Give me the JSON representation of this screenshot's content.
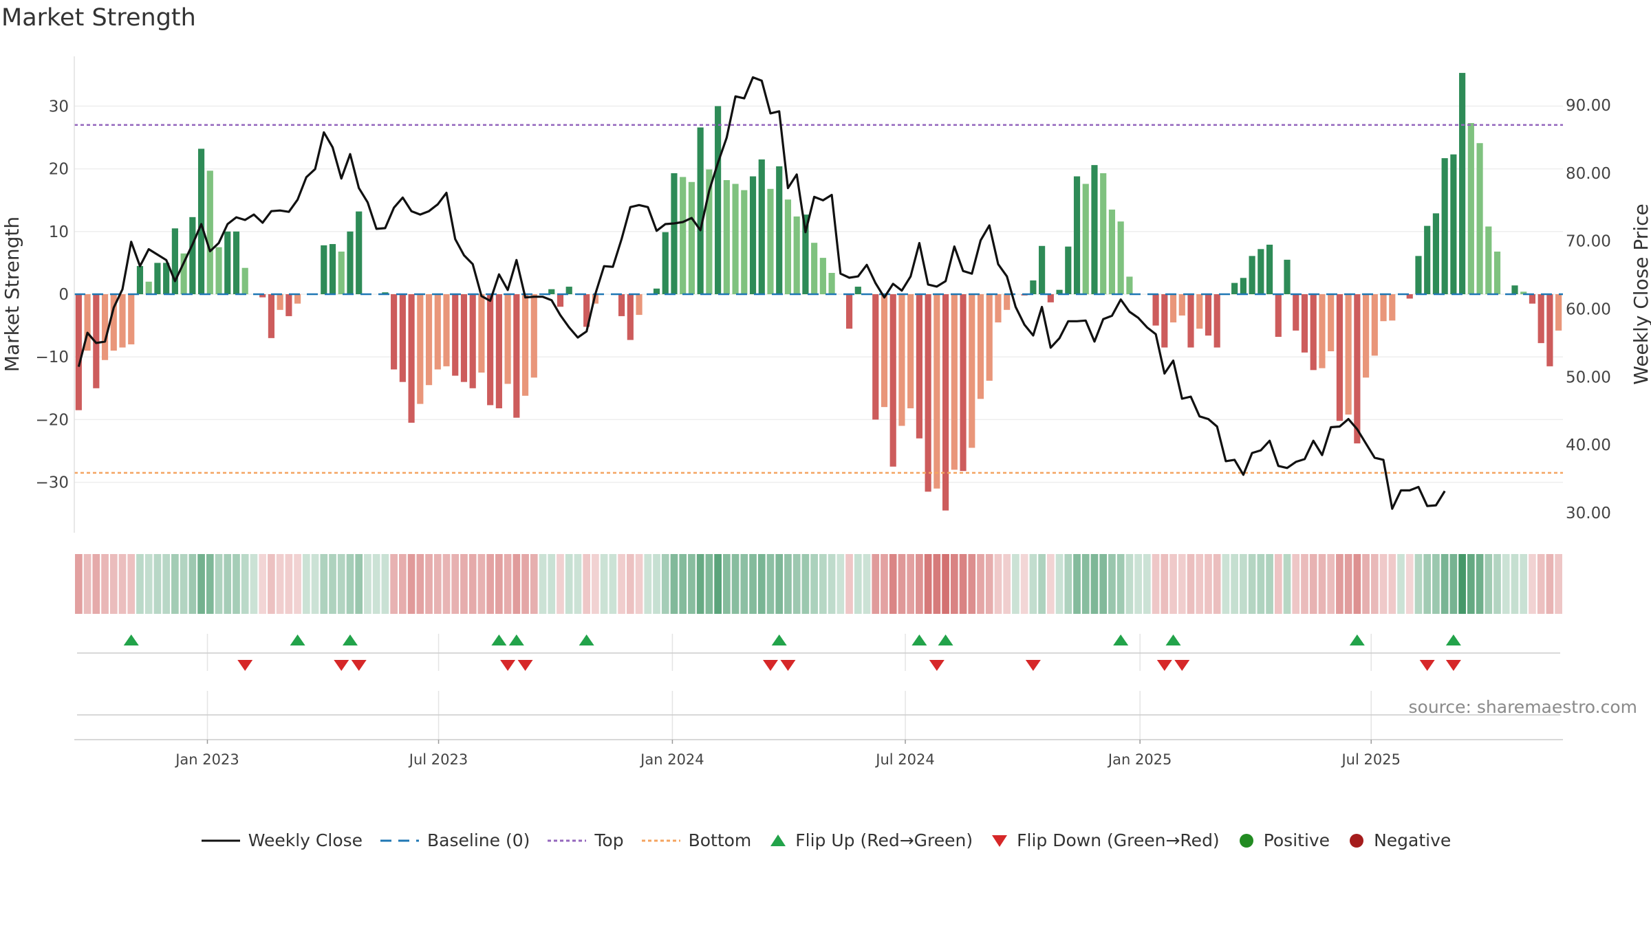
{
  "title": "Market Strength",
  "source_note": "source: sharemaestro.com",
  "colors": {
    "strong_green": "#2e8b57",
    "light_green": "#7fc27f",
    "strong_red": "#cd5c5c",
    "light_red": "#e9967a",
    "line": "#111111",
    "baseline": "#1f77b4",
    "top": "#9467bd",
    "bottom": "#f4a460",
    "flip_up": "#22a34a",
    "flip_down": "#d62728",
    "positive": "#228b22",
    "negative": "#a51c1c"
  },
  "legend": [
    {
      "key": "line",
      "label": "Weekly Close"
    },
    {
      "key": "baseline",
      "label": "Baseline (0)"
    },
    {
      "key": "top",
      "label": "Top"
    },
    {
      "key": "bottom",
      "label": "Bottom"
    },
    {
      "key": "flip_up",
      "label": "Flip Up (Red→Green)"
    },
    {
      "key": "flip_down",
      "label": "Flip Down (Green→Red)"
    },
    {
      "key": "positive",
      "label": "Positive"
    },
    {
      "key": "negative",
      "label": "Negative"
    }
  ],
  "chart_data": {
    "type": "bar",
    "ylabel_left": "Market Strength",
    "ylabel_right": "Weekly Close Price",
    "y_left_range": [
      -38,
      38
    ],
    "y_left_ticks": [
      30,
      20,
      10,
      0,
      -10,
      -20,
      -30
    ],
    "y_left_tick_labels": [
      "30",
      "20",
      "10",
      "0",
      "−10",
      "−20",
      "−30"
    ],
    "y_right_range": [
      27.5,
      97.5
    ],
    "y_right_ticks": [
      "90.00",
      "80.00",
      "70.00",
      "60.00",
      "50.00",
      "40.00",
      "30.00"
    ],
    "top_level": 27,
    "bottom_level": -28.5,
    "baseline_level": 0,
    "x_date_labels": [
      "Jan 2023",
      "Jul 2023",
      "Jan 2024",
      "Jul 2024",
      "Jan 2025",
      "Jul 2025"
    ],
    "x_date_label_weeks": [
      14.7,
      41.1,
      67.8,
      94.4,
      121.2,
      147.6
    ],
    "strength": [
      -18.5,
      -9,
      -15,
      -10.5,
      -9,
      -8.5,
      -8,
      4.5,
      2,
      5,
      5,
      10.5,
      6.5,
      12.3,
      23.2,
      19.7,
      7.5,
      10,
      10,
      4.2,
      0,
      -0.5,
      -7,
      -2.5,
      -3.5,
      -1.5,
      0,
      0,
      7.8,
      8,
      6.8,
      10,
      13.2,
      0,
      0,
      0.3,
      -12,
      -14,
      -20.5,
      -17.5,
      -14.5,
      -12,
      -11.5,
      -13,
      -14,
      -15,
      -12.5,
      -17.7,
      -18.2,
      -14.3,
      -19.7,
      -16.2,
      -13.3,
      0,
      0.8,
      -2,
      1.2,
      0,
      -5.2,
      -1.5,
      0,
      0,
      -3.5,
      -7.3,
      -3.3,
      0,
      0.9,
      9.9,
      19.3,
      18.7,
      17.9,
      26.6,
      19.9,
      30,
      18.2,
      17.6,
      16.6,
      18.8,
      21.5,
      16.8,
      20.4,
      15.1,
      12.4,
      12.7,
      8.2,
      5.8,
      3.4,
      0,
      -5.5,
      1.2,
      0,
      -20,
      -18,
      -27.5,
      -21,
      -18.2,
      -23,
      -31.5,
      -31,
      -34.5,
      -28,
      -28.2,
      -24.5,
      -16.7,
      -13.8,
      -4.5,
      -2.5,
      0,
      -0.2,
      2.2,
      7.7,
      -1.3,
      0.7,
      7.6,
      18.8,
      17.6,
      20.6,
      19.3,
      13.5,
      11.6,
      2.8,
      0,
      0,
      -5,
      -8.5,
      -4.5,
      -3.4,
      -8.5,
      -5.5,
      -6.6,
      -8.5,
      0,
      1.8,
      2.6,
      6.1,
      7.2,
      7.9,
      -6.8,
      5.5,
      -5.8,
      -9.3,
      -12.1,
      -11.8,
      -9.1,
      -20.2,
      -19.2,
      -23.8,
      -13.3,
      -9.8,
      -4.3,
      -4.2,
      0,
      -0.7,
      6.1,
      10.9,
      12.9,
      21.7,
      22.3,
      35.3,
      27.3,
      24.1,
      10.8,
      6.8,
      0,
      1.4,
      0.4,
      -1.5,
      -7.8,
      -11.5,
      -5.8
    ],
    "weekly_close": [
      51.5,
      56.5,
      55,
      55.2,
      60.2,
      62.9,
      69.9,
      66.3,
      68.8,
      68,
      67.2,
      64.1,
      66.8,
      69.5,
      72.5,
      68.5,
      69.7,
      72.5,
      73.5,
      73.1,
      73.9,
      72.7,
      74.4,
      74.5,
      74.3,
      76.1,
      79.4,
      80.6,
      86,
      83.8,
      79.2,
      82.8,
      77.8,
      75.7,
      71.8,
      71.9,
      74.9,
      76.4,
      74.4,
      73.9,
      74.4,
      75.4,
      77.1,
      70.3,
      67.9,
      66.6,
      61.9,
      61.2,
      65.1,
      62.8,
      67.2,
      61.7,
      61.8,
      61.8,
      61.3,
      59.1,
      57.3,
      55.8,
      56.7,
      62.2,
      66.3,
      66.2,
      70.3,
      75,
      75.3,
      75,
      71.5,
      72.5,
      72.6,
      72.8,
      73.4,
      71.6,
      77.4,
      81.5,
      85.2,
      91.3,
      91,
      94.1,
      93.6,
      88.8,
      89.1,
      77.8,
      79.8,
      71.3,
      76.5,
      76,
      76.8,
      65.2,
      64.6,
      64.8,
      66.5,
      63.8,
      61.7,
      63.7,
      62.7,
      64.8,
      69.7,
      63.6,
      63.3,
      64.1,
      69.2,
      65.6,
      65.2,
      70.1,
      72.3,
      66.6,
      64.8,
      60.3,
      57.7,
      56.1,
      60.3,
      54.3,
      55.7,
      58.2,
      58.2,
      58.3,
      55.2,
      58.5,
      59,
      61.4,
      59.6,
      58.7,
      57.3,
      56.3,
      50.5,
      52.4,
      46.8,
      47.1,
      44.2,
      43.8,
      42.7,
      37.6,
      37.8,
      35.6,
      38.8,
      39.2,
      40.6,
      36.9,
      36.6,
      37.5,
      37.9,
      40.6,
      38.5,
      42.6,
      42.7,
      43.8,
      42.3,
      40.2,
      38.1,
      37.8,
      30.6,
      33.3,
      33.3,
      33.8,
      31,
      31.1,
      33.2
    ]
  },
  "flip_up_weeks": [
    6,
    25,
    31,
    48,
    50,
    58,
    80,
    96,
    99,
    119,
    125,
    146,
    157
  ],
  "flip_down_weeks": [
    19,
    30,
    32,
    49,
    51,
    79,
    81,
    98,
    109,
    124,
    126,
    154,
    157
  ]
}
